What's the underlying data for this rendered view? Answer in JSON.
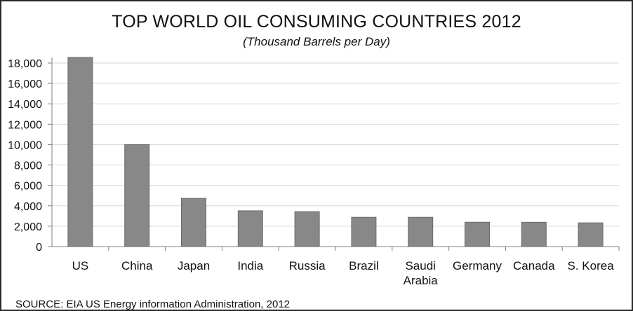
{
  "chart_data": {
    "type": "bar",
    "title": "TOP WORLD OIL CONSUMING COUNTRIES 2012",
    "subtitle": "(Thousand Barrels per Day)",
    "categories": [
      "US",
      "China",
      "Japan",
      "India",
      "Russia",
      "Brazil",
      "Saudi Arabia",
      "Germany",
      "Canada",
      "S. Korea"
    ],
    "category_lines": [
      [
        "US"
      ],
      [
        "China"
      ],
      [
        "Japan"
      ],
      [
        "India"
      ],
      [
        "Russia"
      ],
      [
        "Brazil"
      ],
      [
        "Saudi",
        "Arabia"
      ],
      [
        "Germany"
      ],
      [
        "Canada"
      ],
      [
        "S. Korea"
      ]
    ],
    "values": [
      18555,
      10003,
      4727,
      3509,
      3425,
      2870,
      2870,
      2387,
      2382,
      2327
    ],
    "ylim": [
      0,
      18000
    ],
    "yticks": [
      0,
      2000,
      4000,
      6000,
      8000,
      10000,
      12000,
      14000,
      16000,
      18000
    ],
    "ytick_labels": [
      "0",
      "2,000",
      "4,000",
      "6,000",
      "8,000",
      "10,000",
      "12,000",
      "14,000",
      "16,000",
      "18,000"
    ],
    "xlabel": "",
    "ylabel": "",
    "grid": true,
    "bar_color": "#888888",
    "grid_color": "#d9d9d9",
    "source": "SOURCE:  EIA US Energy information Administration, 2012"
  }
}
